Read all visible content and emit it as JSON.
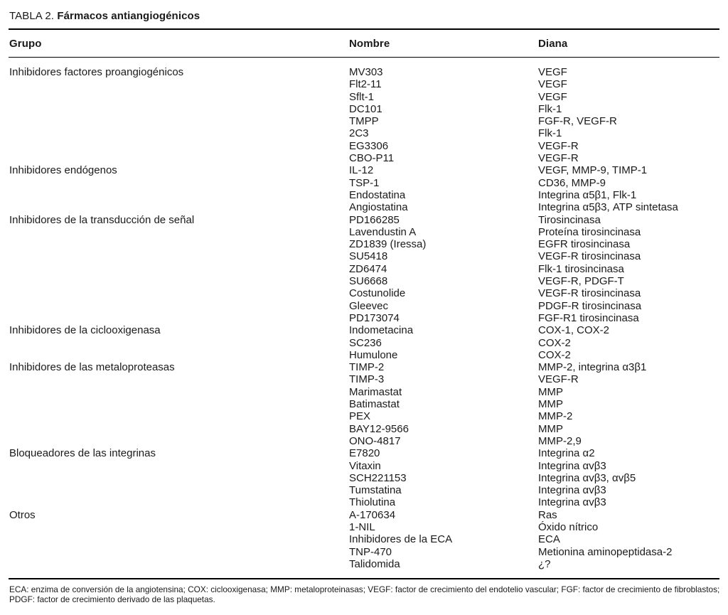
{
  "table": {
    "label": "TABLA 2.",
    "title": "Fármacos antiangiogénicos",
    "columns": [
      "Grupo",
      "Nombre",
      "Diana"
    ],
    "groups": [
      {
        "name": "Inhibidores factores proangiogénicos",
        "drugs": [
          {
            "nombre": "MV303",
            "diana": "VEGF"
          },
          {
            "nombre": "Flt2-11",
            "diana": "VEGF"
          },
          {
            "nombre": "Sflt-1",
            "diana": "VEGF"
          },
          {
            "nombre": "DC101",
            "diana": "Flk-1"
          },
          {
            "nombre": "TMPP",
            "diana": "FGF-R, VEGF-R"
          },
          {
            "nombre": "2C3",
            "diana": "Flk-1"
          },
          {
            "nombre": "EG3306",
            "diana": "VEGF-R"
          },
          {
            "nombre": "CBO-P11",
            "diana": "VEGF-R"
          }
        ]
      },
      {
        "name": "Inhibidores endógenos",
        "drugs": [
          {
            "nombre": "IL-12",
            "diana": "VEGF, MMP-9, TIMP-1"
          },
          {
            "nombre": "TSP-1",
            "diana": "CD36, MMP-9"
          },
          {
            "nombre": "Endostatina",
            "diana": "Integrina α5β1, Flk-1"
          },
          {
            "nombre": "Angiostatina",
            "diana": "Integrina α5β3, ATP sintetasa"
          }
        ]
      },
      {
        "name": "Inhibidores de la transducción de señal",
        "drugs": [
          {
            "nombre": "PD166285",
            "diana": "Tirosincinasa"
          },
          {
            "nombre": "Lavendustin A",
            "diana": "Proteína tirosincinasa"
          },
          {
            "nombre": "ZD1839 (Iressa)",
            "diana": "EGFR tirosincinasa"
          },
          {
            "nombre": "SU5418",
            "diana": "VEGF-R tirosincinasa"
          },
          {
            "nombre": "ZD6474",
            "diana": "Flk-1 tirosincinasa"
          },
          {
            "nombre": "SU6668",
            "diana": "VEGF-R, PDGF-T"
          },
          {
            "nombre": "Costunolide",
            "diana": "VEGF-R tirosincinasa"
          },
          {
            "nombre": "Gleevec",
            "diana": "PDGF-R tirosincinasa"
          },
          {
            "nombre": "PD173074",
            "diana": "FGF-R1 tirosincinasa"
          }
        ]
      },
      {
        "name": "Inhibidores de la ciclooxigenasa",
        "drugs": [
          {
            "nombre": "Indometacina",
            "diana": "COX-1, COX-2"
          },
          {
            "nombre": "SC236",
            "diana": "COX-2"
          },
          {
            "nombre": "Humulone",
            "diana": "COX-2"
          }
        ]
      },
      {
        "name": "Inhibidores de las metaloproteasas",
        "drugs": [
          {
            "nombre": "TIMP-2",
            "diana": "MMP-2, integrina α3β1"
          },
          {
            "nombre": "TIMP-3",
            "diana": "VEGF-R"
          },
          {
            "nombre": "Marimastat",
            "diana": "MMP"
          },
          {
            "nombre": "Batimastat",
            "diana": "MMP"
          },
          {
            "nombre": "PEX",
            "diana": "MMP-2"
          },
          {
            "nombre": "BAY12-9566",
            "diana": "MMP"
          },
          {
            "nombre": "ONO-4817",
            "diana": "MMP-2,9"
          }
        ]
      },
      {
        "name": "Bloqueadores de las integrinas",
        "drugs": [
          {
            "nombre": "E7820",
            "diana": "Integrina α2"
          },
          {
            "nombre": "Vitaxin",
            "diana": "Integrina αvβ3"
          },
          {
            "nombre": "SCH221153",
            "diana": "Integrina αvβ3, αvβ5"
          },
          {
            "nombre": "Tumstatina",
            "diana": "Integrina αvβ3"
          },
          {
            "nombre": "Thiolutina",
            "diana": "Integrina αvβ3"
          }
        ]
      },
      {
        "name": "Otros",
        "drugs": [
          {
            "nombre": "A-170634",
            "diana": "Ras"
          },
          {
            "nombre": "1-NIL",
            "diana": "Óxido nítrico"
          },
          {
            "nombre": "Inhibidores de la ECA",
            "diana": "ECA"
          },
          {
            "nombre": "TNP-470",
            "diana": "Metionina aminopeptidasa-2"
          },
          {
            "nombre": "Talidomida",
            "diana": "¿?"
          }
        ]
      }
    ],
    "footnote": "ECA: enzima de conversión de la angiotensina; COX: ciclooxigenasa; MMP: metaloproteinasas; VEGF: factor de crecimiento del endotelio vascular; FGF: factor de crecimiento de fibroblastos; PDGF: factor de crecimiento derivado de las plaquetas."
  }
}
